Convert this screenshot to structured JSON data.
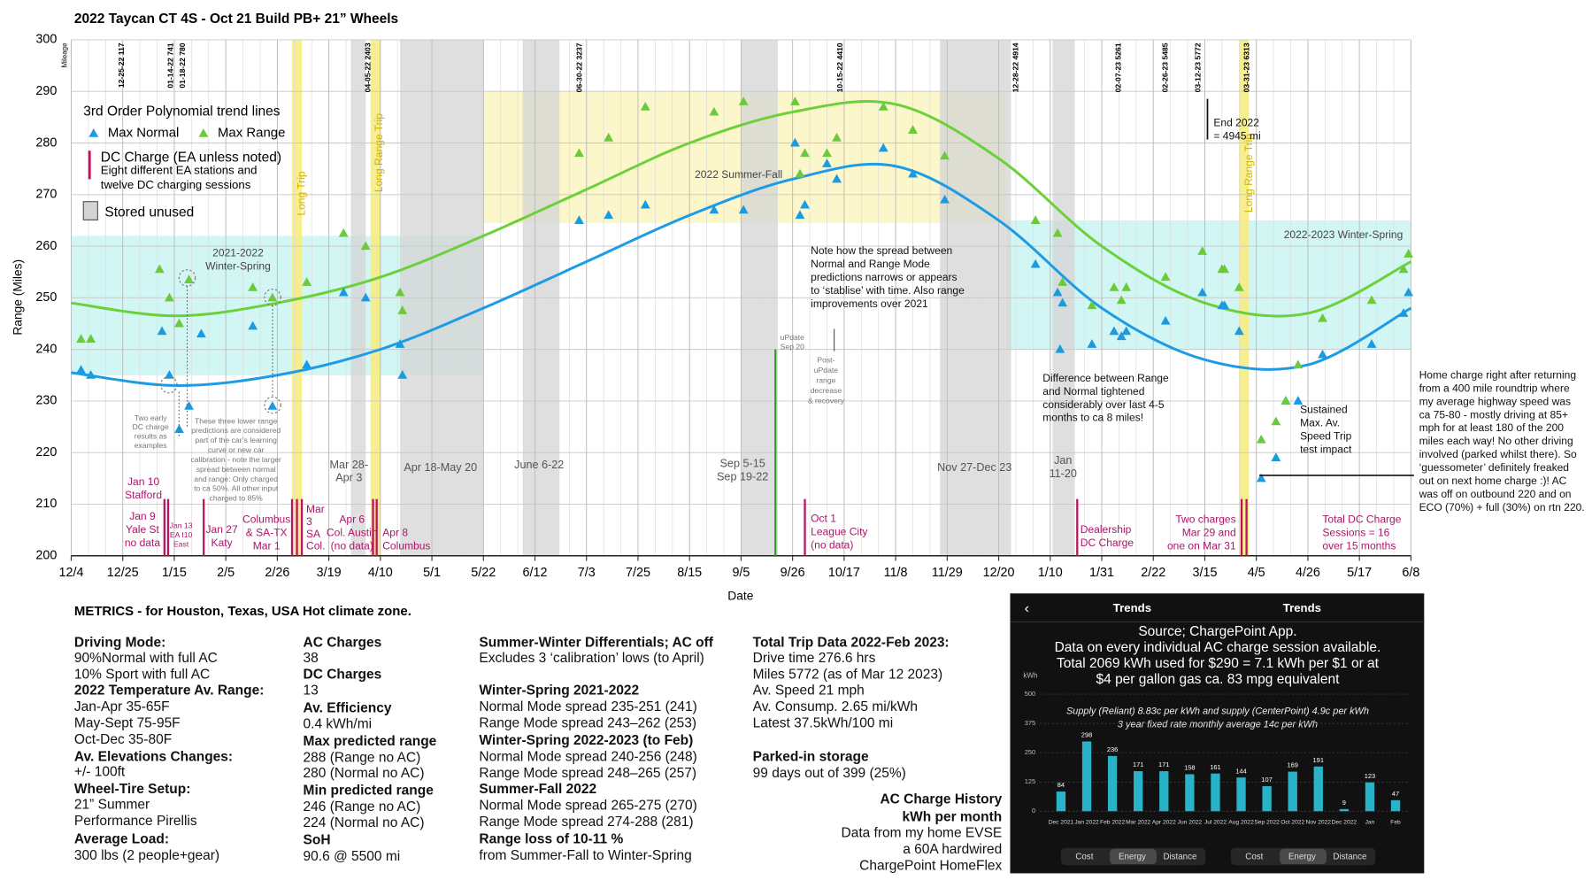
{
  "chart_data": [
    {
      "type": "scatter",
      "title": "2022 Taycan CT 4S - Oct 21 Build PB+ 21” Wheels",
      "x_label": "Date",
      "y_label": "Range (Miles)",
      "xlim": [
        0,
        546
      ],
      "xticks": [
        {
          "value": 0,
          "label": "12/4"
        },
        {
          "value": 21,
          "label": "12/25"
        },
        {
          "value": 42,
          "label": "1/15"
        },
        {
          "value": 63,
          "label": "2/5"
        },
        {
          "value": 84,
          "label": "2/26"
        },
        {
          "value": 105,
          "label": "3/19"
        },
        {
          "value": 126,
          "label": "4/10"
        },
        {
          "value": 147,
          "label": "5/1"
        },
        {
          "value": 168,
          "label": "5/22"
        },
        {
          "value": 189,
          "label": "6/12"
        },
        {
          "value": 210,
          "label": "7/3"
        },
        {
          "value": 231,
          "label": "7/25"
        },
        {
          "value": 252,
          "label": "8/15"
        },
        {
          "value": 273,
          "label": "9/5"
        },
        {
          "value": 294,
          "label": "9/26"
        },
        {
          "value": 315,
          "label": "10/17"
        },
        {
          "value": 336,
          "label": "11/8"
        },
        {
          "value": 357,
          "label": "11/29"
        },
        {
          "value": 378,
          "label": "12/20"
        },
        {
          "value": 399,
          "label": "1/10"
        },
        {
          "value": 420,
          "label": "1/31"
        },
        {
          "value": 441,
          "label": "2/22"
        },
        {
          "value": 462,
          "label": "3/15"
        },
        {
          "value": 483,
          "label": "4/5"
        },
        {
          "value": 504,
          "label": "4/26"
        },
        {
          "value": 525,
          "label": "5/17"
        },
        {
          "value": 546,
          "label": "6/8"
        }
      ],
      "ylim": [
        200,
        300
      ],
      "yticks": [
        200,
        210,
        220,
        230,
        240,
        250,
        260,
        270,
        280,
        290,
        300
      ],
      "grid": true,
      "legend_title": "3rd Order Polynomial trend lines",
      "series": [
        {
          "name": "Max Normal",
          "color": "#1b9ae0",
          "x": [
            4,
            8,
            37,
            40,
            44,
            48,
            53,
            74,
            82,
            96,
            111,
            120,
            134,
            135,
            207,
            219,
            234,
            262,
            274,
            295,
            297,
            299,
            308,
            312,
            331,
            343,
            356,
            393,
            402,
            403,
            404,
            416,
            425,
            428,
            430,
            446,
            461,
            469,
            470,
            476,
            485,
            491,
            495,
            500,
            510,
            530,
            543,
            545
          ],
          "values": [
            236,
            235,
            243.5,
            235,
            224.5,
            229,
            243,
            244.5,
            229,
            237,
            251,
            250,
            241,
            235,
            265,
            266,
            268,
            267,
            267,
            280,
            266,
            268,
            276,
            273,
            279,
            274,
            269,
            256.5,
            251,
            240,
            249,
            241,
            243.5,
            242.5,
            243.5,
            245.5,
            251,
            248.5,
            248.5,
            243.5,
            215,
            219,
            230,
            230,
            239,
            241,
            247,
            251
          ]
        },
        {
          "name": "Max Range",
          "color": "#6cc93c",
          "x": [
            4,
            8,
            36,
            40,
            44,
            48,
            74,
            82,
            96,
            111,
            120,
            134,
            135,
            207,
            219,
            234,
            262,
            274,
            295,
            297,
            299,
            308,
            312,
            331,
            343,
            356,
            393,
            402,
            404,
            416,
            425,
            428,
            430,
            446,
            461,
            469,
            470,
            476,
            485,
            491,
            495,
            500,
            510,
            530,
            543,
            545
          ],
          "values": [
            242,
            242,
            255.5,
            250,
            245,
            253.5,
            252,
            250,
            253,
            262.5,
            260,
            251,
            247.5,
            278,
            281,
            287,
            286,
            288,
            288,
            274,
            278,
            278,
            281,
            287,
            282.5,
            277.5,
            265,
            262.5,
            253,
            248.5,
            252,
            249.5,
            252,
            254,
            259,
            255.5,
            255.5,
            252,
            222.5,
            226,
            230,
            237,
            246,
            249.5,
            255.5,
            258.5
          ]
        }
      ],
      "trend_lines": [
        {
          "color": "#1e9be6",
          "x": [
            0,
            42,
            84,
            126,
            168,
            210,
            252,
            294,
            336,
            378,
            420,
            462,
            504,
            546
          ],
          "values": [
            235.5,
            233,
            235,
            240,
            248,
            257,
            266,
            273,
            275.5,
            265,
            248,
            238,
            237,
            248
          ]
        },
        {
          "color": "#6bd13a",
          "x": [
            0,
            42,
            84,
            126,
            168,
            210,
            252,
            294,
            336,
            378,
            420,
            462,
            504,
            546
          ],
          "values": [
            249,
            246.5,
            249,
            254,
            262,
            271,
            280,
            286,
            287.5,
            277,
            260,
            249,
            247,
            257
          ]
        }
      ],
      "legend_dc": "DC Charge (EA unless noted)",
      "legend_dc_note": [
        "Eight different EA stations and",
        "twelve DC charging sessions"
      ],
      "legend_stored": "Stored unused",
      "regions": [
        {
          "x": [
            0,
            168
          ],
          "y": [
            235,
            262
          ],
          "color": "#c9f4f1"
        },
        {
          "x": [
            168,
            381
          ],
          "y": [
            264.5,
            290
          ],
          "color": "#fbf5c2"
        },
        {
          "x": [
            381,
            546
          ],
          "y": [
            240,
            265
          ],
          "color": "#c9f4f1"
        }
      ],
      "stored_color": "#d4d4d4",
      "stored_unused": [
        [
          114,
          120
        ],
        [
          134,
          168
        ],
        [
          184,
          199
        ],
        [
          273,
          288
        ],
        [
          354,
          383
        ],
        [
          400,
          409
        ]
      ],
      "trip_color": "#f6ec84",
      "long_range_trips": [
        [
          90,
          94
        ],
        [
          122,
          126
        ],
        [
          476,
          480
        ]
      ],
      "dc_color": "#b8145f",
      "dc_charges": [
        38,
        39.5,
        54,
        90,
        92,
        94,
        123,
        124.5,
        299,
        410,
        477,
        479
      ],
      "update_color": "#2f9e2f",
      "update": {
        "x": 287,
        "value": 240
      },
      "milestones": [
        "Mileage",
        "12-25-22 117",
        "01-14-22 741",
        "01-18-22 780",
        "04-05-22 2403",
        "06-30-22 3237",
        "10-15-22 4410",
        "12-28-22 4914",
        "02-07-23 5261",
        "02-26-23 5485",
        "03-12-23 5772",
        "03-31-23 6313"
      ],
      "annotations": [
        [
          "2022 Summer-Fall"
        ],
        [
          "2021-2022",
          "Winter-Spring"
        ],
        [
          "2022-2023 Winter-Spring"
        ],
        [
          "Long Trip"
        ],
        [
          "Long Range Trip"
        ],
        [
          "Long Range Trip"
        ],
        [
          "End 2022",
          "= 4945 mi"
        ],
        [
          "Note how the spread between",
          "Normal and Range Mode",
          "predictions narrows or appears",
          "to ‘stablise’ with time. Also range",
          "improvements over 2021"
        ],
        [
          "uPdate",
          "Sep 20"
        ],
        [
          "Post-",
          "uPdate",
          "range",
          "decrease",
          "& recovery"
        ],
        [
          "Difference between Range",
          "and Normal tightened",
          "considerably over last 4-5",
          "months to ca 8 miles!"
        ],
        [
          "Home charge right after returning",
          "from a 400 mile roundtrip where",
          "my average highway speed was",
          "ca 75-80 - mostly driving at 85+",
          "mph for at least 180 of the 200",
          "miles each way!  No other driving",
          "involved (parked whilst there).  So",
          "‘guessometer’ definitely freaked",
          "out on next home charge :)!  AC",
          "was off on outbound 220 and on",
          "ECO (70%) + full (30%) on rtn 220."
        ],
        [
          "Sustained",
          "Max. Av.",
          "Speed Trip",
          "test impact"
        ],
        [
          "Two early",
          "DC charge",
          "results as",
          "examples"
        ],
        [
          "These three lower range",
          "predictions are considered",
          "part of the car’s learning",
          "curve or new car",
          "calibration - note the larger",
          "spread between normal",
          "and range:  Only charged",
          "to ca 50%. All other input",
          "charged to 85%"
        ],
        [
          "Mar 28-",
          "Apr 3"
        ],
        [
          "Apr 18-May 20"
        ],
        [
          "June 6-22"
        ],
        [
          "Sep 5-15",
          "Sep 19-22"
        ],
        [
          "Nov 27-Dec 23"
        ],
        [
          "Jan",
          "11-20"
        ],
        [
          "Jan 10",
          "Stafford"
        ],
        [
          "Jan 9",
          "Yale St",
          "no data"
        ],
        [
          "Jan 13",
          "EA  I10",
          "East"
        ],
        [
          "Jan 27",
          "Katy"
        ],
        [
          "Columbus",
          "& SA-TX",
          "Mar 1"
        ],
        [
          "Mar",
          "3",
          "SA",
          "Col."
        ],
        [
          "Apr 6",
          "Col. Austin",
          "(no data)"
        ],
        [
          "Apr 8",
          "Columbus"
        ],
        [
          "Oct 1",
          "League City",
          "(no data)"
        ],
        [
          "Dealership",
          "DC Charge"
        ],
        [
          "Two charges",
          "Mar 29 and",
          "one on Mar 31"
        ],
        [
          "Total DC Charge",
          "Sessions = 16",
          "over 15 months"
        ]
      ]
    },
    {
      "type": "bar",
      "header": [
        "Trends",
        "Trends"
      ],
      "title": [
        "Source; ChargePoint App.",
        "Data on every individual AC charge session available.",
        "Total 2069 kWh used for $290 = 7.1 kWh per $1 or at",
        "$4 per gallon gas ca. 83 mpg equivalent"
      ],
      "subtitle": [
        "Supply (Reliant) 8.83c per kWh and supply (CenterPoint) 4.9c per kWh",
        "3 year fixed rate monthly average 14c per kWh"
      ],
      "y_label": "kWh",
      "categories": [
        "Dec 2021",
        "Jan 2022",
        "Feb 2022",
        "Mar 2022",
        "Apr 2022",
        "Jun 2022",
        "Jul 2022",
        "Aug 2022",
        "Sep 2022",
        "Oct 2022",
        "Nov 2022",
        "Dec 2022",
        "Jan",
        "Feb"
      ],
      "values": [
        84,
        298,
        236,
        171,
        171,
        158,
        161,
        144,
        107,
        169,
        191,
        9,
        123,
        47
      ],
      "color": "#29b3c8",
      "ylim": [
        0,
        500
      ],
      "yticks": [
        0,
        125,
        250,
        375,
        500
      ],
      "buttons": [
        [
          "Cost",
          "Energy",
          "Distance"
        ],
        [
          "Cost",
          "Energy",
          "Distance"
        ]
      ]
    }
  ],
  "metrics": {
    "heading": "METRICS - for Houston, Texas, USA Hot climate zone.",
    "columns": [
      [
        {
          "text": "Driving Mode:",
          "bold": true
        },
        {
          "text": "90%Normal with full AC"
        },
        {
          "text": "10% Sport with full AC"
        },
        {
          "text": "2022 Temperature Av. Range:",
          "bold": true
        },
        {
          "text": "Jan-Apr 35-65F"
        },
        {
          "text": "May-Sept 75-95F"
        },
        {
          "text": "Oct-Dec 35-80F"
        },
        {
          "text": "Av. Elevations Changes:",
          "bold": true
        },
        {
          "text": "+/- 100ft"
        },
        {
          "text": "Wheel-Tire Setup:",
          "bold": true
        },
        {
          "text": "21” Summer"
        },
        {
          "text": "Performance Pirellis"
        },
        {
          "text": "Average Load:",
          "bold": true
        },
        {
          "text": "300 lbs (2 people+gear)"
        }
      ],
      [
        {
          "text": "AC Charges",
          "bold": true
        },
        {
          "text": "38"
        },
        {
          "text": "DC Charges",
          "bold": true
        },
        {
          "text": "13"
        },
        {
          "text": "Av. Efficiency",
          "bold": true
        },
        {
          "text": "0.4 kWh/mi"
        },
        {
          "text": "Max predicted range",
          "bold": true
        },
        {
          "text": "288 (Range no AC)"
        },
        {
          "text": "280 (Normal no AC)"
        },
        {
          "text": "Min predicted range",
          "bold": true
        },
        {
          "text": "246 (Range no AC)"
        },
        {
          "text": "224 (Normal no AC)"
        },
        {
          "text": "SoH",
          "bold": true
        },
        {
          "text": "90.6 @ 5500 mi"
        }
      ],
      [
        {
          "text": "Summer-Winter Differentials; AC off",
          "bold": true
        },
        {
          "text": "Excludes 3 ‘calibration’ lows (to April)"
        },
        {
          "text": "Winter-Spring 2021-2022",
          "bold": true
        },
        {
          "text": "Normal Mode spread 235-251 (241)"
        },
        {
          "text": "Range Mode spread 243–262 (253)"
        },
        {
          "text": "Winter-Spring 2022-2023 (to Feb)",
          "bold": true
        },
        {
          "text": "Normal Mode spread 240-256 (248)"
        },
        {
          "text": "Range Mode spread 248–265 (257)"
        },
        {
          "text": "Summer-Fall 2022",
          "bold": true
        },
        {
          "text": "Normal Mode spread 265-275 (270)"
        },
        {
          "text": "Range Mode spread 274-288 (281)"
        },
        {
          "text": "Range loss of 10-11 %",
          "bold": true
        },
        {
          "text": "from Summer-Fall to Winter-Spring"
        }
      ],
      [
        {
          "text": "Total Trip Data 2022-Feb 2023:",
          "bold": true
        },
        {
          "text": "Drive time 276.6 hrs"
        },
        {
          "text": "Miles 5772 (as of Mar 12 2023)"
        },
        {
          "text": "Av. Speed 21 mph"
        },
        {
          "text": "Av. Consump. 2.65 mi/kWh"
        },
        {
          "text": "Latest 37.5kWh/100 mi"
        },
        {
          "text": "Parked-in storage",
          "bold": true
        },
        {
          "text": "99 days out of 399 (25%)"
        }
      ],
      [
        {
          "text": "AC Charge History",
          "bold": true
        },
        {
          "text": "kWh per month",
          "bold": true
        },
        {
          "text": "Data from my home EVSE"
        },
        {
          "text": "a 60A hardwired"
        },
        {
          "text": "ChargePoint HomeFlex"
        }
      ]
    ]
  }
}
